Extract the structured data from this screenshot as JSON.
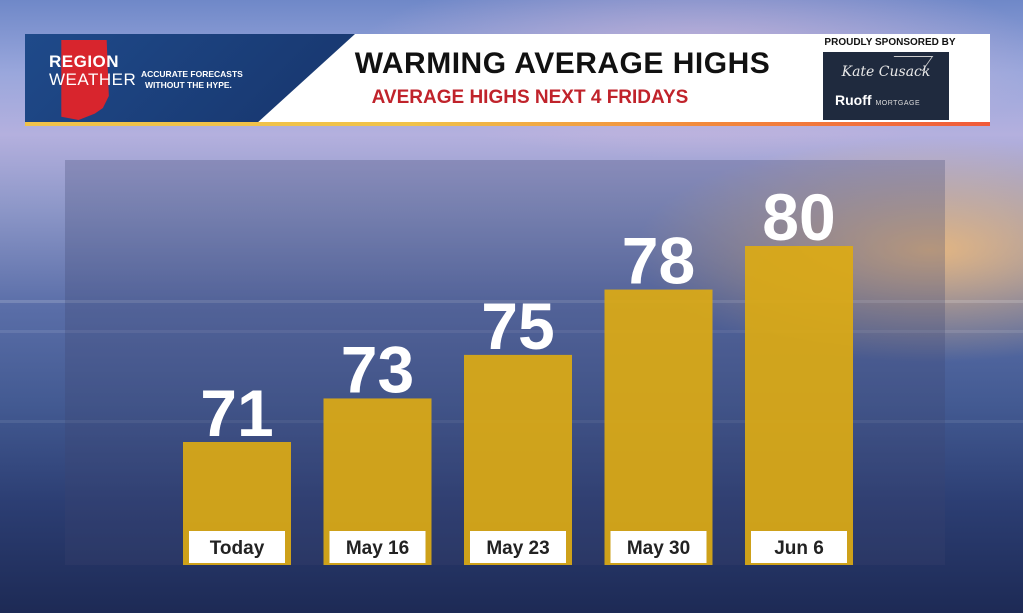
{
  "header": {
    "brand_line1": "REGION",
    "brand_line2": "WEATHER",
    "tagline_line1": "ACCURATE FORECASTS",
    "tagline_line2": "WITHOUT THE HYPE.",
    "title": "WARMING AVERAGE HIGHS",
    "subtitle": "AVERAGE HIGHS NEXT 4 FRIDAYS",
    "sponsor_label": "PROUDLY SPONSORED BY",
    "sponsor_name": "Kate Cusack",
    "sponsor_brand": "Ruoff",
    "sponsor_brand_suffix": "MORTGAGE"
  },
  "colors": {
    "bar": "#dcaa14",
    "label_bg": "#ffffff",
    "value_text": "#ffffff",
    "title_red": "#c0232b",
    "brand_blue": "#1f4a8a"
  },
  "chart_data": {
    "type": "bar",
    "categories": [
      "Today",
      "May 16",
      "May 23",
      "May 30",
      "Jun 6"
    ],
    "values": [
      71,
      73,
      75,
      78,
      80
    ],
    "title": "WARMING AVERAGE HIGHS",
    "subtitle": "AVERAGE HIGHS NEXT 4 FRIDAYS",
    "xlabel": "",
    "ylabel": "",
    "grid": false,
    "legend": "none"
  }
}
